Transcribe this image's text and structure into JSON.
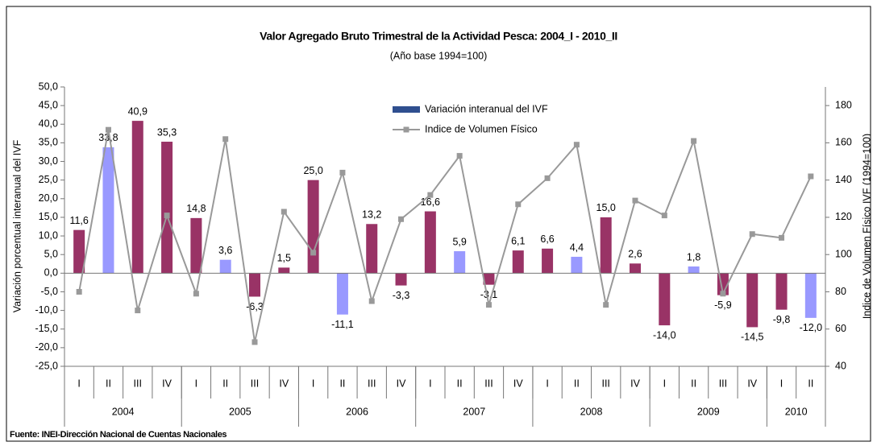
{
  "chart_data": {
    "type": "bar_line",
    "title": "Valor Agregado Bruto Trimestral de la Actividad Pesca: 2004_I - 2010_II",
    "subtitle": "(Año base 1994=100)",
    "y_label": "Variación porcentual interanual del IVF",
    "y2_label": "Indice de Volumen Físico IVF (1994=100)",
    "source": "Fuente: INEI-Dirección Nacional de Cuentas  Nacionales",
    "categories": [
      "I",
      "II",
      "III",
      "IV",
      "I",
      "II",
      "III",
      "IV",
      "I",
      "II",
      "III",
      "IV",
      "I",
      "II",
      "III",
      "IV",
      "I",
      "II",
      "III",
      "IV",
      "I",
      "II",
      "III",
      "IV",
      "I",
      "II"
    ],
    "groups": [
      {
        "label": "2004",
        "size": 4
      },
      {
        "label": "2005",
        "size": 4
      },
      {
        "label": "2006",
        "size": 4
      },
      {
        "label": "2007",
        "size": 4
      },
      {
        "label": "2008",
        "size": 4
      },
      {
        "label": "2009",
        "size": 4
      },
      {
        "label": "2010",
        "size": 2
      }
    ],
    "series": [
      {
        "name": "Variación interanual del IVF",
        "color": "#2f4f8f",
        "type": "bar",
        "bar_colors": [
          "#993366",
          "#9999ff",
          "#993366",
          "#993366",
          "#993366",
          "#9999ff",
          "#993366",
          "#993366",
          "#993366",
          "#9999ff",
          "#993366",
          "#993366",
          "#993366",
          "#9999ff",
          "#993366",
          "#993366",
          "#993366",
          "#9999ff",
          "#993366",
          "#993366",
          "#993366",
          "#9999ff",
          "#993366",
          "#993366",
          "#993366",
          "#9999ff"
        ],
        "values": [
          11.6,
          33.8,
          40.9,
          35.3,
          14.8,
          3.6,
          -6.3,
          1.5,
          25.0,
          -11.1,
          13.2,
          -3.3,
          16.6,
          5.9,
          -3.1,
          6.1,
          6.6,
          4.4,
          15.0,
          2.6,
          -14.0,
          1.8,
          -5.9,
          -14.5,
          -9.8,
          -12.0
        ],
        "value_labels": [
          "11,6",
          "33,8",
          "40,9",
          "35,3",
          "14,8",
          "3,6",
          "-6,3",
          "1,5",
          "25,0",
          "-11,1",
          "13,2",
          "-3,3",
          "16,6",
          "5,9",
          "-3,1",
          "6,1",
          "6,6",
          "4,4",
          "15,0",
          "2,6",
          "-14,0",
          "1,8",
          "-5,9",
          "-14,5",
          "-9,8",
          "-12,0"
        ]
      },
      {
        "name": "Indice de Volumen Físico",
        "color": "#999999",
        "type": "line",
        "axis": "y2",
        "values": [
          80,
          167,
          70,
          121,
          79,
          162,
          53,
          123,
          101,
          144,
          75,
          119,
          132,
          153,
          73,
          127,
          141,
          159,
          73,
          129,
          121,
          161,
          79,
          111,
          109,
          142
        ]
      }
    ],
    "ylim": [
      -25,
      50
    ],
    "yticks": [
      {
        "value": -25,
        "label": "-25,0"
      },
      {
        "value": -20,
        "label": "-20,0"
      },
      {
        "value": -15,
        "label": "-15,0"
      },
      {
        "value": -10,
        "label": "-10,0"
      },
      {
        "value": -5,
        "label": "-5,0"
      },
      {
        "value": 0,
        "label": "0,0"
      },
      {
        "value": 5,
        "label": "5,0"
      },
      {
        "value": 10,
        "label": "10,0"
      },
      {
        "value": 15,
        "label": "15,0"
      },
      {
        "value": 20,
        "label": "20,0"
      },
      {
        "value": 25,
        "label": "25,0"
      },
      {
        "value": 30,
        "label": "30,0"
      },
      {
        "value": 35,
        "label": "35,0"
      },
      {
        "value": 40,
        "label": "40,0"
      },
      {
        "value": 45,
        "label": "45,0"
      },
      {
        "value": 50,
        "label": "50,0"
      }
    ],
    "y2lim": [
      40,
      190
    ],
    "y2ticks": [
      40,
      60,
      80,
      100,
      120,
      140,
      160,
      180
    ],
    "legend": "top-center"
  }
}
